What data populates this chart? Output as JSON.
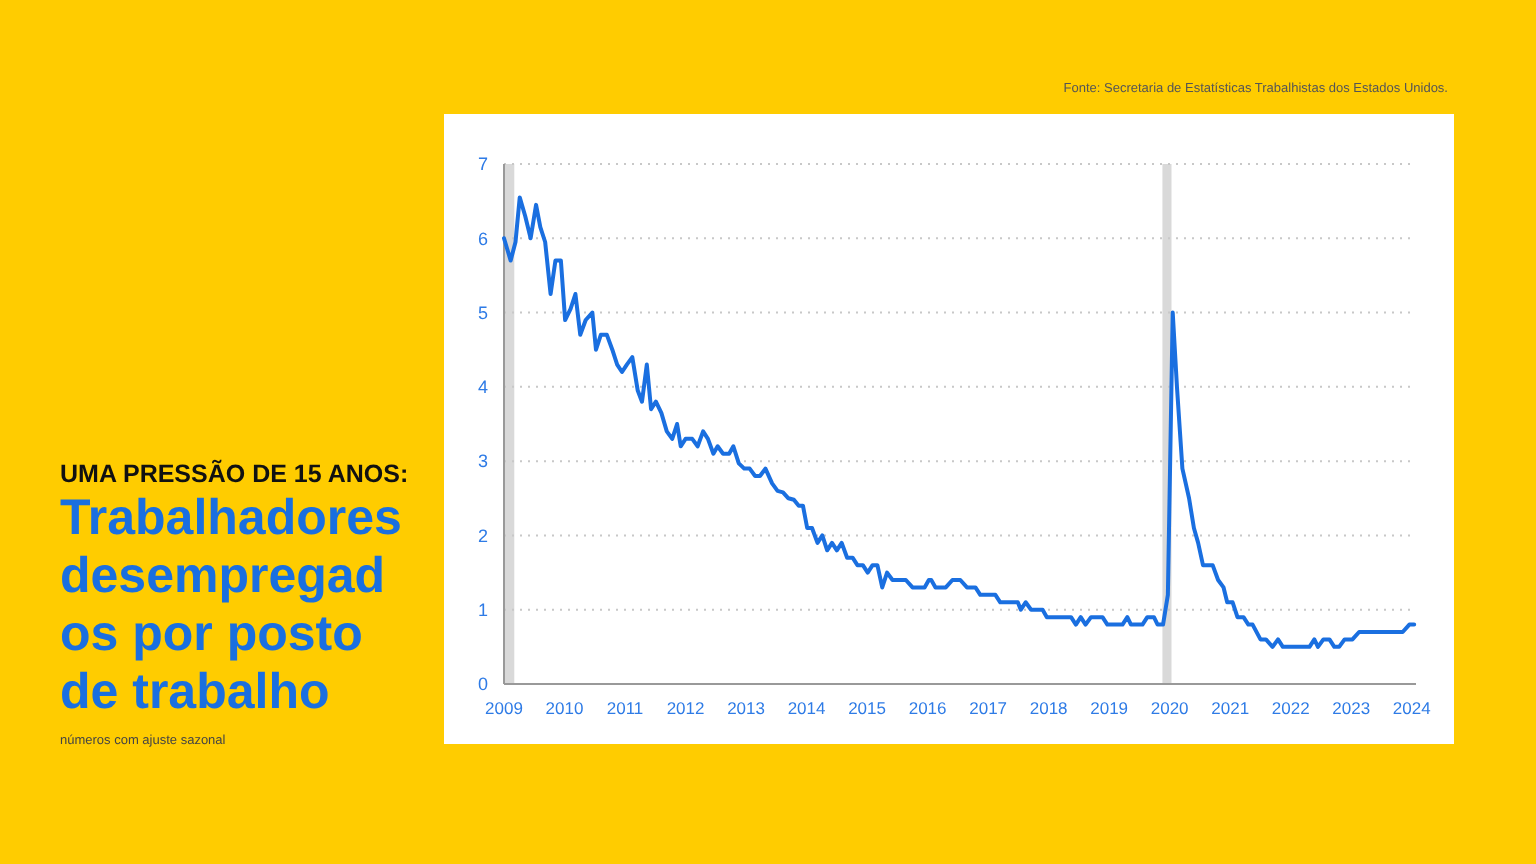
{
  "chart_data": {
    "type": "line",
    "title": "UMA PRESSÃO DE 15 ANOS:",
    "subtitle": "Trabalhadores desempregados por posto de trabalho",
    "annotations": [
      "Fonte: Secretaria de Estatísticas Trabalhistas dos Estados Unidos.",
      "números com ajuste sazonal"
    ],
    "series": [
      {
        "color": "#1a6fe0",
        "x": [
          2009.0,
          2009.11,
          2009.19,
          2009.26,
          2009.35,
          2009.44,
          2009.53,
          2009.6,
          2009.68,
          2009.77,
          2009.85,
          2009.94,
          2010.01,
          2010.1,
          2010.18,
          2010.26,
          2010.35,
          2010.46,
          2010.52,
          2010.6,
          2010.7,
          2010.79,
          2010.87,
          2010.95,
          2011.03,
          2011.12,
          2011.21,
          2011.28,
          2011.36,
          2011.43,
          2011.51,
          2011.6,
          2011.69,
          2011.78,
          2011.86,
          2011.92,
          2012.0,
          2012.11,
          2012.2,
          2012.29,
          2012.37,
          2012.46,
          2012.53,
          2012.62,
          2012.72,
          2012.79,
          2012.88,
          2012.97,
          2013.06,
          2013.15,
          2013.23,
          2013.32,
          2013.43,
          2013.52,
          2013.61,
          2013.7,
          2013.79,
          2013.87,
          2013.94,
          2014.01,
          2014.09,
          2014.18,
          2014.26,
          2014.34,
          2014.42,
          2014.5,
          2014.58,
          2014.67,
          2014.76,
          2014.84,
          2014.93,
          2015.01,
          2015.09,
          2015.17,
          2015.25,
          2015.33,
          2015.42,
          2015.64,
          2015.75,
          2015.95,
          2016.02,
          2016.06,
          2016.13,
          2016.3,
          2016.41,
          2016.54,
          2016.65,
          2016.79,
          2016.87,
          2017.12,
          2017.2,
          2017.49,
          2017.54,
          2017.62,
          2017.71,
          2017.9,
          2017.97,
          2018.37,
          2018.45,
          2018.53,
          2018.61,
          2018.7,
          2018.89,
          2018.97,
          2019.22,
          2019.3,
          2019.36,
          2019.55,
          2019.63,
          2019.74,
          2019.8,
          2019.89,
          2019.97,
          2020.05,
          2020.12,
          2020.21,
          2020.32,
          2020.4,
          2020.47,
          2020.55,
          2020.71,
          2020.8,
          2020.89,
          2020.95,
          2021.04,
          2021.12,
          2021.22,
          2021.3,
          2021.37,
          2021.5,
          2021.59,
          2021.7,
          2021.79,
          2021.87,
          2022.31,
          2022.39,
          2022.45,
          2022.54,
          2022.64,
          2022.72,
          2022.8,
          2022.89,
          2023.02,
          2023.13,
          2023.85,
          2023.96,
          2024.04
        ],
        "values": [
          6.0,
          5.7,
          5.95,
          6.55,
          6.3,
          6.0,
          6.45,
          6.15,
          5.95,
          5.25,
          5.7,
          5.7,
          4.9,
          5.05,
          5.25,
          4.7,
          4.9,
          5.0,
          4.5,
          4.7,
          4.7,
          4.5,
          4.3,
          4.2,
          4.3,
          4.4,
          3.95,
          3.8,
          4.3,
          3.7,
          3.8,
          3.65,
          3.4,
          3.3,
          3.5,
          3.2,
          3.3,
          3.3,
          3.2,
          3.4,
          3.3,
          3.1,
          3.2,
          3.1,
          3.1,
          3.2,
          2.97,
          2.9,
          2.9,
          2.8,
          2.8,
          2.9,
          2.7,
          2.6,
          2.58,
          2.5,
          2.48,
          2.4,
          2.4,
          2.1,
          2.1,
          1.9,
          2.0,
          1.8,
          1.9,
          1.8,
          1.9,
          1.7,
          1.7,
          1.6,
          1.6,
          1.5,
          1.6,
          1.6,
          1.3,
          1.5,
          1.4,
          1.4,
          1.3,
          1.3,
          1.4,
          1.4,
          1.3,
          1.3,
          1.4,
          1.4,
          1.3,
          1.3,
          1.2,
          1.2,
          1.1,
          1.1,
          1.0,
          1.1,
          1.0,
          1.0,
          0.9,
          0.9,
          0.8,
          0.9,
          0.8,
          0.9,
          0.9,
          0.8,
          0.8,
          0.9,
          0.8,
          0.8,
          0.9,
          0.9,
          0.8,
          0.8,
          1.2,
          5.0,
          4.0,
          2.9,
          2.5,
          2.1,
          1.9,
          1.6,
          1.6,
          1.4,
          1.3,
          1.1,
          1.1,
          0.9,
          0.9,
          0.8,
          0.8,
          0.6,
          0.6,
          0.5,
          0.6,
          0.5,
          0.5,
          0.6,
          0.5,
          0.6,
          0.6,
          0.5,
          0.5,
          0.6,
          0.6,
          0.7,
          0.7,
          0.8,
          0.8
        ]
      }
    ],
    "xlim": [
      2009,
      2024.07
    ],
    "xticks": [
      2009,
      2010,
      2011,
      2012,
      2013,
      2014,
      2015,
      2016,
      2017,
      2018,
      2019,
      2020,
      2021,
      2022,
      2023,
      2024
    ],
    "ylim": [
      0,
      7
    ],
    "yticks": [
      0,
      1,
      2,
      3,
      4,
      5,
      6,
      7
    ],
    "grid": "y",
    "bands": [
      {
        "axis": "x",
        "from": 2009.0,
        "to": 2009.17,
        "color": "#d9d9d9"
      },
      {
        "axis": "x",
        "from": 2019.88,
        "to": 2020.03,
        "color": "#d9d9d9"
      }
    ]
  }
}
